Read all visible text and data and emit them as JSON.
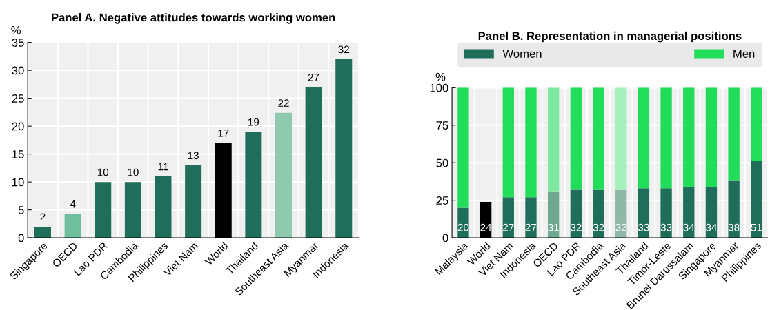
{
  "chart_data": [
    {
      "type": "bar",
      "title": "Panel A. Negative attitudes towards working women",
      "ylabel": "%",
      "categories": [
        "Singapore",
        "OECD",
        "Lao PDR",
        "Cambodia",
        "Philippines",
        "Viet Nam",
        "World",
        "Thailand",
        "Southeast Asia",
        "Myanmar",
        "Indonesia"
      ],
      "values": [
        2,
        4.3,
        10,
        10,
        11,
        13,
        17,
        19,
        22.4,
        27,
        32
      ],
      "colors": [
        "#1f6e5a",
        "#6fbf9f",
        "#1f6e5a",
        "#1f6e5a",
        "#1f6e5a",
        "#1f6e5a",
        "#000000",
        "#1f6e5a",
        "#8fc9b0",
        "#1f6e5a",
        "#1f6e5a"
      ],
      "value_labels": [
        "2",
        "4",
        "10",
        "10",
        "11",
        "13",
        "17",
        "19",
        "22",
        "27",
        "32"
      ],
      "ylim": [
        0,
        35
      ],
      "yticks": [
        0,
        5,
        10,
        15,
        20,
        25,
        30,
        35
      ],
      "grid": true
    },
    {
      "type": "bar",
      "title": "Panel B. Representation in managerial positions",
      "ylabel": "%",
      "stacked": true,
      "legend": "top",
      "grid": true,
      "categories": [
        "Malaysia",
        "World",
        "Viet Nam",
        "Indonesia",
        "OECD",
        "Lao PDR",
        "Cambodia",
        "Southeast Asia",
        "Thailand",
        "Timor-Leste",
        "Brunei Darussalam",
        "Singapore",
        "Myanmar",
        "Philippines"
      ],
      "ylim": [
        0,
        100
      ],
      "yticks": [
        0,
        25,
        50,
        75,
        100
      ],
      "series": [
        {
          "name": "Women",
          "color": "#1f6e5a",
          "colors": [
            "#1f6e5a",
            "#000000",
            "#1f6e5a",
            "#1f6e5a",
            "#6fa890",
            "#1f6e5a",
            "#1f6e5a",
            "#8fb8a8",
            "#1f6e5a",
            "#1f6e5a",
            "#1f6e5a",
            "#1f6e5a",
            "#1f6e5a",
            "#1f6e5a"
          ],
          "values": [
            20,
            24,
            27,
            27,
            31,
            32,
            32,
            32,
            33,
            33,
            34,
            34,
            38,
            51
          ],
          "value_labels": [
            "20",
            "24",
            "27",
            "27",
            "31",
            "32",
            "32",
            "32",
            "33",
            "33",
            "34",
            "34",
            "38",
            "51"
          ]
        },
        {
          "name": "Men",
          "color": "#22dd5a",
          "colors": [
            "#22dd5a",
            null,
            "#22dd5a",
            "#22dd5a",
            "#7fe8a0",
            "#22dd5a",
            "#22dd5a",
            "#a6f0bc",
            "#22dd5a",
            "#22dd5a",
            "#22dd5a",
            "#22dd5a",
            "#22dd5a",
            "#22dd5a"
          ],
          "values": [
            80,
            null,
            73,
            73,
            69,
            68,
            68,
            68,
            67,
            67,
            66,
            66,
            62,
            49
          ]
        }
      ]
    }
  ]
}
